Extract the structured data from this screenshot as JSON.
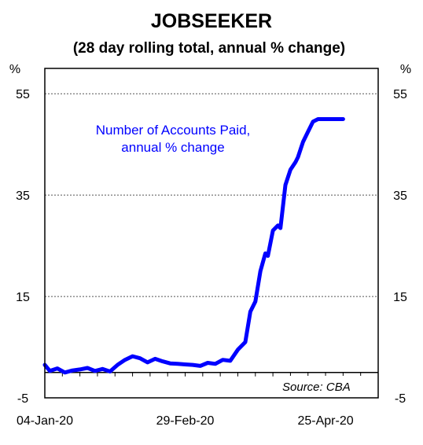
{
  "chart_data": {
    "type": "line",
    "title": "JOBSEEKER",
    "subtitle": "(28 day rolling total, annual % change)",
    "y_unit_left": "%",
    "y_unit_right": "%",
    "ylim": [
      -5,
      60
    ],
    "y_ticks": [
      55,
      35,
      15,
      -5
    ],
    "y_tick_labels": [
      "55",
      "35",
      "15",
      "-5"
    ],
    "x_tick_labels": [
      "04-Jan-20",
      "29-Feb-20",
      "25-Apr-20"
    ],
    "x_tick_dates": [
      "2020-01-04",
      "2020-02-29",
      "2020-04-25"
    ],
    "xlim": [
      "2020-01-04",
      "2020-05-16"
    ],
    "gridlines": "horizontal-dotted",
    "source": "Source: CBA",
    "series": [
      {
        "name": "Number of Accounts Paid,\nannual % change",
        "color": "#0000ff",
        "x": [
          "2020-01-04",
          "2020-01-06",
          "2020-01-09",
          "2020-01-12",
          "2020-01-15",
          "2020-01-18",
          "2020-01-21",
          "2020-01-24",
          "2020-01-27",
          "2020-01-30",
          "2020-02-02",
          "2020-02-05",
          "2020-02-08",
          "2020-02-11",
          "2020-02-14",
          "2020-02-17",
          "2020-02-20",
          "2020-02-23",
          "2020-02-26",
          "2020-02-29",
          "2020-03-03",
          "2020-03-06",
          "2020-03-09",
          "2020-03-12",
          "2020-03-15",
          "2020-03-18",
          "2020-03-21",
          "2020-03-24",
          "2020-03-26",
          "2020-03-28",
          "2020-03-30",
          "2020-04-01",
          "2020-04-02",
          "2020-04-04",
          "2020-04-06",
          "2020-04-07",
          "2020-04-09",
          "2020-04-11",
          "2020-04-13",
          "2020-04-14",
          "2020-04-16",
          "2020-04-18",
          "2020-04-20",
          "2020-04-22",
          "2020-04-24",
          "2020-04-26",
          "2020-04-28",
          "2020-04-30",
          "2020-05-02"
        ],
        "values": [
          1.5,
          0.3,
          0.8,
          0.0,
          0.4,
          0.6,
          0.9,
          0.3,
          0.7,
          0.2,
          1.5,
          2.5,
          3.2,
          2.8,
          2.0,
          2.7,
          2.2,
          1.8,
          1.7,
          1.6,
          1.5,
          1.3,
          1.9,
          1.7,
          2.5,
          2.3,
          4.5,
          6.0,
          12.0,
          14.0,
          20.0,
          23.5,
          23.0,
          28.0,
          29.0,
          28.5,
          37.0,
          40.0,
          41.5,
          42.5,
          45.5,
          47.5,
          49.5,
          50.0,
          50.0,
          50.0,
          50.0,
          50.0,
          50.0
        ]
      }
    ]
  }
}
